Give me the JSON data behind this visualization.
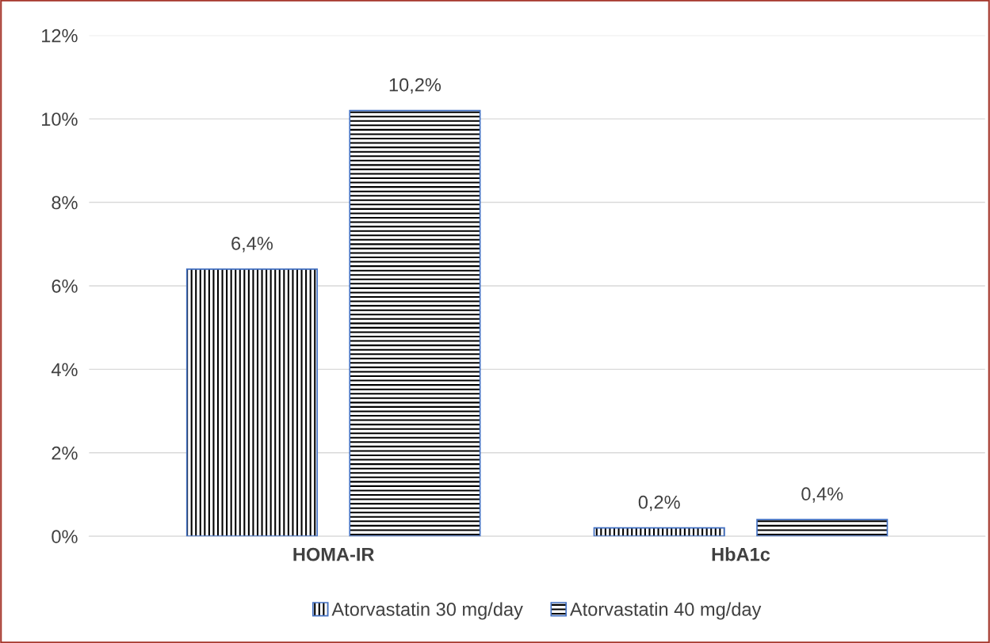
{
  "chart_data": {
    "type": "bar",
    "categories": [
      "HOMA-IR",
      "HbA1c"
    ],
    "series": [
      {
        "name": "Atorvastatin 30 mg/day",
        "color": "#000000",
        "values": [
          6.4,
          0.2
        ],
        "value_labels": [
          "6,4%",
          "0,2%"
        ]
      },
      {
        "name": "Atorvastatin 40 mg/day",
        "color": "#000000",
        "values": [
          10.2,
          0.4
        ],
        "value_labels": [
          "10,2%",
          "0,4%"
        ]
      }
    ],
    "ylim": [
      0,
      12
    ],
    "yticks": [
      {
        "value": 0,
        "label": "0%"
      },
      {
        "value": 2,
        "label": "2%"
      },
      {
        "value": 4,
        "label": "4%"
      },
      {
        "value": 6,
        "label": "6%"
      },
      {
        "value": 8,
        "label": "8%"
      },
      {
        "value": 10,
        "label": "10%"
      },
      {
        "value": 12,
        "label": "12%"
      }
    ],
    "grid": "y",
    "legend": "bottom"
  }
}
